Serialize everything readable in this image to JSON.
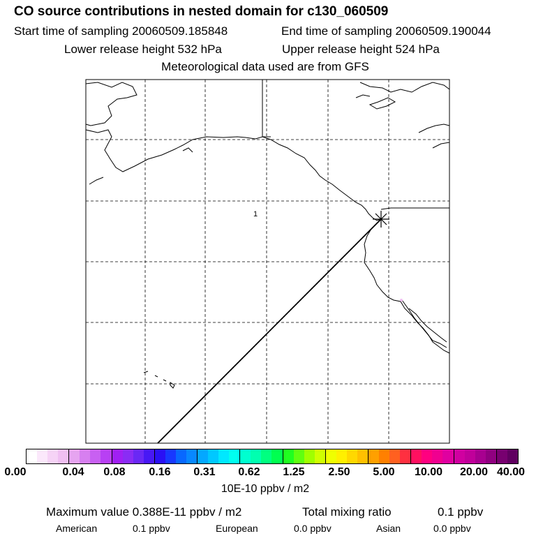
{
  "header": {
    "title": "CO  source contributions in nested domain for c130_060509",
    "start_time": "Start time of sampling 20060509.185848",
    "end_time": "End time of sampling 20060509.190044",
    "lower_height": "Lower release height  532 hPa",
    "upper_height": "Upper release height  524 hPa",
    "met_data": "Meteorological data used are from GFS"
  },
  "map": {
    "marker_label": "1",
    "marker_symbol": "asterisk",
    "land_outline_color": "#000000",
    "grid_style": "dashed"
  },
  "colorbar": {
    "colors": [
      "#ffffff",
      "#fbe8fb",
      "#f6d3f6",
      "#f0bff2",
      "#e6a4f0",
      "#d77ff0",
      "#c860f2",
      "#b840f4",
      "#a020f4",
      "#8a2cf5",
      "#6a28f5",
      "#4818f5",
      "#2a10f5",
      "#1838ff",
      "#0868ff",
      "#0888ff",
      "#04a8ff",
      "#00c8ff",
      "#00e8ff",
      "#00fff0",
      "#00ffd0",
      "#00ffb0",
      "#00ff80",
      "#00ff50",
      "#20ff20",
      "#60ff10",
      "#a0ff00",
      "#d0ff00",
      "#f0ff00",
      "#fff000",
      "#ffd800",
      "#ffc000",
      "#ffa000",
      "#ff8000",
      "#ff6020",
      "#ff3040",
      "#ff1060",
      "#ff0080",
      "#f00090",
      "#e000a0",
      "#d000a0",
      "#c0009a",
      "#a80090",
      "#900080",
      "#780070",
      "#600060"
    ],
    "ticks": [
      "0.00",
      "0.04",
      "0.08",
      "0.16",
      "0.31",
      "0.62",
      "1.25",
      "2.50",
      "5.00",
      "10.00",
      "20.00",
      "40.00"
    ],
    "units": "10E-10 ppbv / m2"
  },
  "summary": {
    "max_value": "Maximum value  0.388E-11 ppbv / m2",
    "total_label": "Total mixing ratio",
    "total_value": "0.1 ppbv",
    "american_label": "American",
    "american_value": "0.1 ppbv",
    "european_label": "European",
    "european_value": "0.0 ppbv",
    "asian_label": "Asian",
    "asian_value": "0.0 ppbv"
  }
}
